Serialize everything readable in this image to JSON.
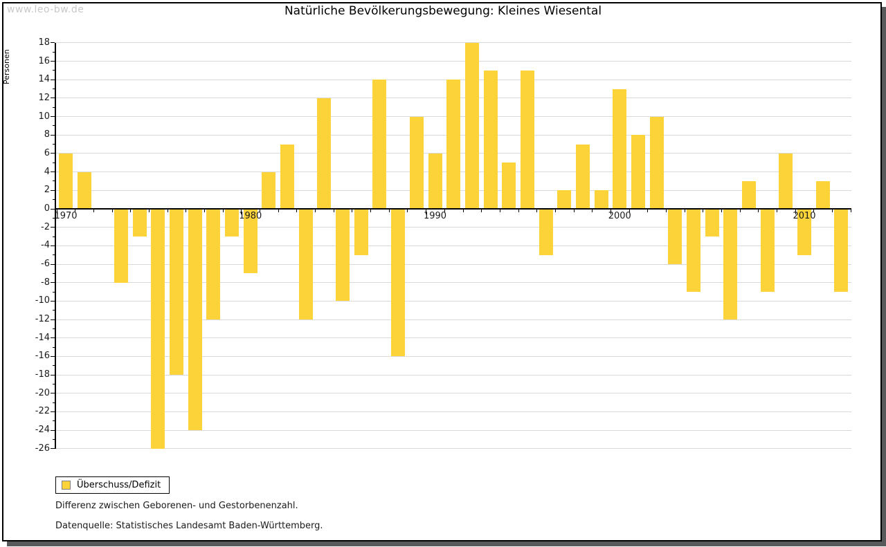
{
  "page": {
    "watermark": "www.leo-bw.de",
    "title": "Natürliche Bevölkerungsbewegung: Kleines Wiesental"
  },
  "legend": {
    "label": "Überschuss/Defizit"
  },
  "footer": {
    "line1": "Differenz zwischen Geborenen- und Gestorbenenzahl.",
    "line2": "Datenquelle: Statistisches Landesamt Baden-Württemberg."
  },
  "chart_data": {
    "type": "bar",
    "title": "Natürliche Bevölkerungsbewegung: Kleines Wiesental",
    "xlabel": "",
    "ylabel": "Personen",
    "ylim": [
      -26,
      18
    ],
    "ytick_step": 2,
    "grid": true,
    "legend_position": "bottom-left",
    "legend_entries": [
      "Überschuss/Defizit"
    ],
    "bar_color": "#FCD43A",
    "grid_color": "#d9d9d9",
    "axis_color": "#000000",
    "x_decade_labels": [
      1970,
      1980,
      1990,
      2000,
      2010
    ],
    "categories": [
      1970,
      1971,
      1972,
      1973,
      1974,
      1975,
      1976,
      1977,
      1978,
      1979,
      1980,
      1981,
      1982,
      1983,
      1984,
      1985,
      1986,
      1987,
      1988,
      1989,
      1990,
      1991,
      1992,
      1993,
      1994,
      1995,
      1996,
      1997,
      1998,
      1999,
      2000,
      2001,
      2002,
      2003,
      2004,
      2005,
      2006,
      2007,
      2008,
      2009,
      2010,
      2011,
      2012
    ],
    "values": [
      6,
      4,
      0,
      -8,
      -3,
      -26,
      -18,
      -24,
      -12,
      -3,
      -7,
      4,
      7,
      -12,
      12,
      -10,
      -5,
      14,
      -16,
      10,
      6,
      14,
      18,
      15,
      5,
      15,
      -5,
      2,
      7,
      2,
      13,
      8,
      10,
      -6,
      -9,
      -3,
      -12,
      3,
      -9,
      6,
      -5,
      3,
      -9
    ]
  }
}
